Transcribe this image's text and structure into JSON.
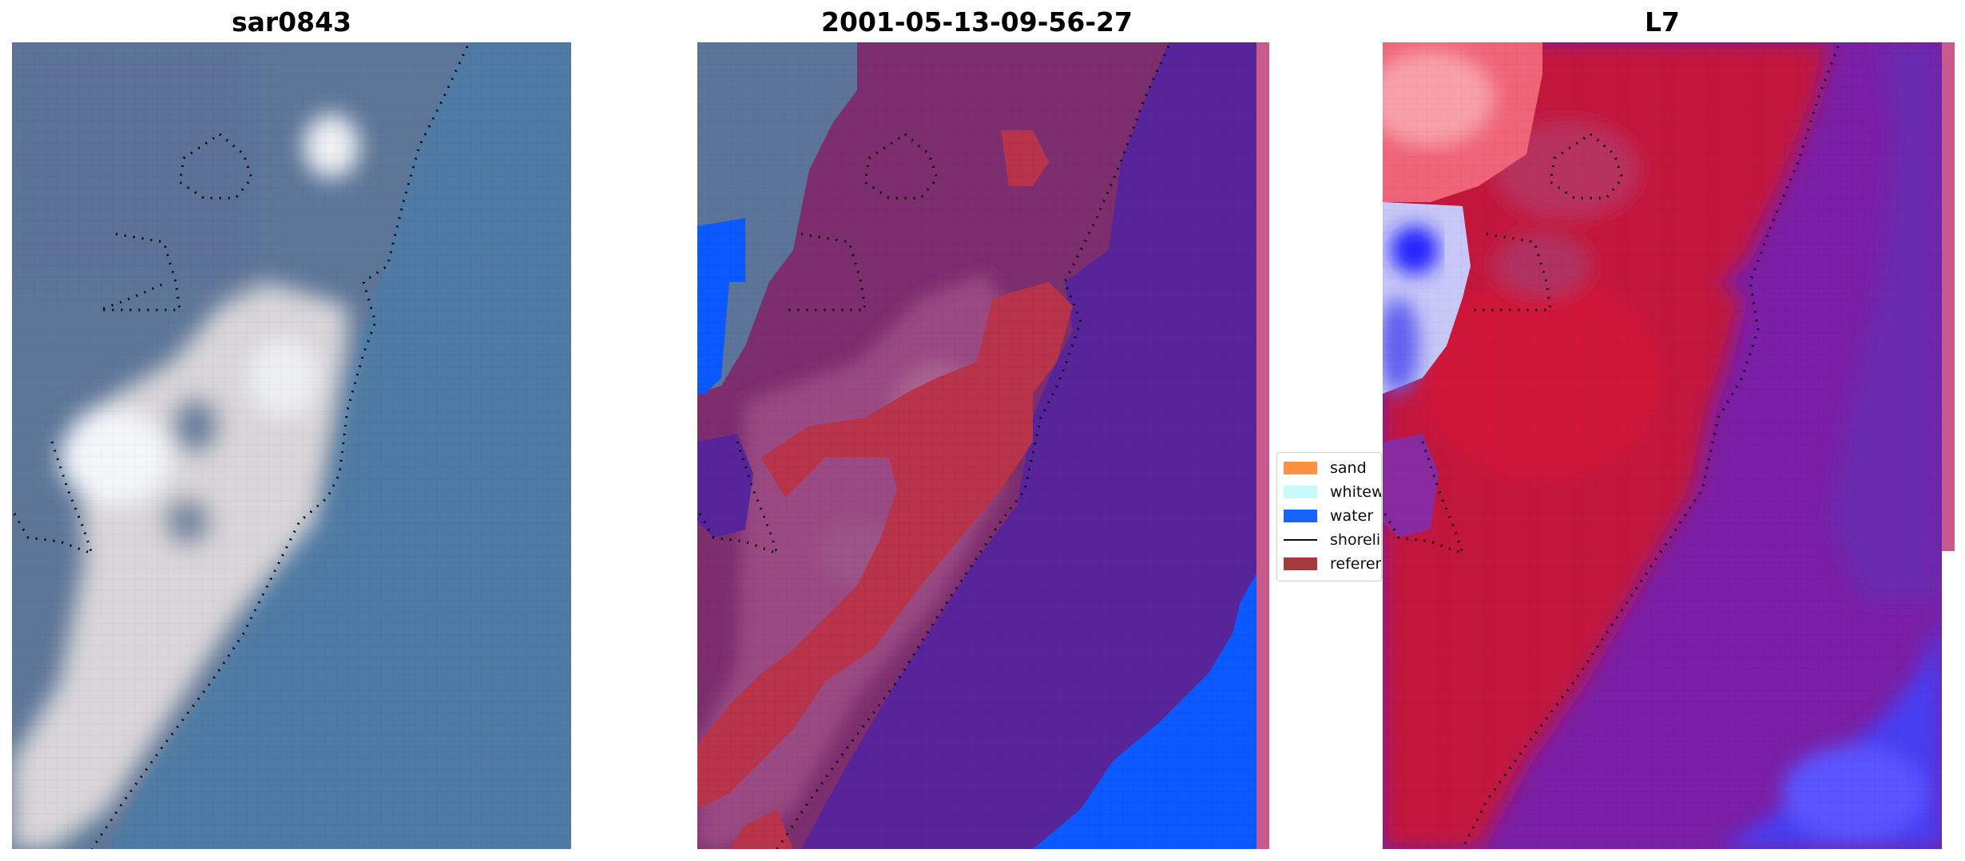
{
  "titles": {
    "left": "sar0843",
    "center": "2001-05-13-09-56-27",
    "right": "L7"
  },
  "legend": {
    "items": [
      {
        "label": "sand",
        "color": "#ff8c3c"
      },
      {
        "label": "whitewater",
        "color": "#c8fafa"
      },
      {
        "label": "water",
        "color": "#0a5aff"
      },
      {
        "label": "shoreline",
        "color": "#000000"
      },
      {
        "label": "reference shoreline",
        "color": "#9e3134"
      }
    ]
  },
  "colors": {
    "ocean_rgb": "#4d7ba6",
    "land_rgb": "#5e789a",
    "beach_rgb": "#e8e4e0",
    "water_class": "#0a5aff",
    "ocean_overlay": "#56239a",
    "land_overlay": "#7a2c6a",
    "reference_overlay": "#b8344a",
    "index_positive": "#c9143a",
    "index_negative": "#7a1fa6",
    "index_low": "#4a4aff"
  }
}
